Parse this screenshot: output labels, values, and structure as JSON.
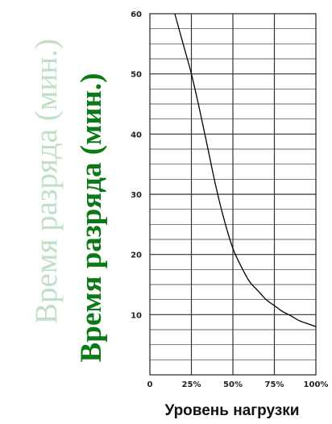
{
  "chart_data": {
    "type": "line",
    "title": "",
    "xlabel": "Уровень нагрузки",
    "ylabel": "Время разряда (мин.)",
    "x_tick_labels": [
      "0",
      "25%",
      "50%",
      "75%",
      "100%"
    ],
    "y_tick_labels": [
      "10",
      "20",
      "30",
      "40",
      "50",
      "60"
    ],
    "x_ticks": [
      0,
      25,
      50,
      75,
      100
    ],
    "y_ticks": [
      10,
      20,
      30,
      40,
      50,
      60
    ],
    "xlim": [
      0,
      100
    ],
    "ylim": [
      0,
      60
    ],
    "grid": true,
    "legend": "none",
    "series": [
      {
        "x": [
          15,
          20,
          25,
          30,
          35,
          40,
          45,
          50,
          55,
          60,
          65,
          70,
          75,
          80,
          85,
          90,
          95,
          100
        ],
        "y": [
          60,
          55,
          50,
          44,
          37.5,
          31,
          25.5,
          21,
          18,
          15.5,
          14,
          12.5,
          11.5,
          10.5,
          9.8,
          9,
          8.5,
          8
        ]
      }
    ],
    "colors": {
      "line": "#000000",
      "grid": "#222222",
      "ylabel": "#0b7a16",
      "ylabel_shadow": "#bfe0c6"
    }
  }
}
